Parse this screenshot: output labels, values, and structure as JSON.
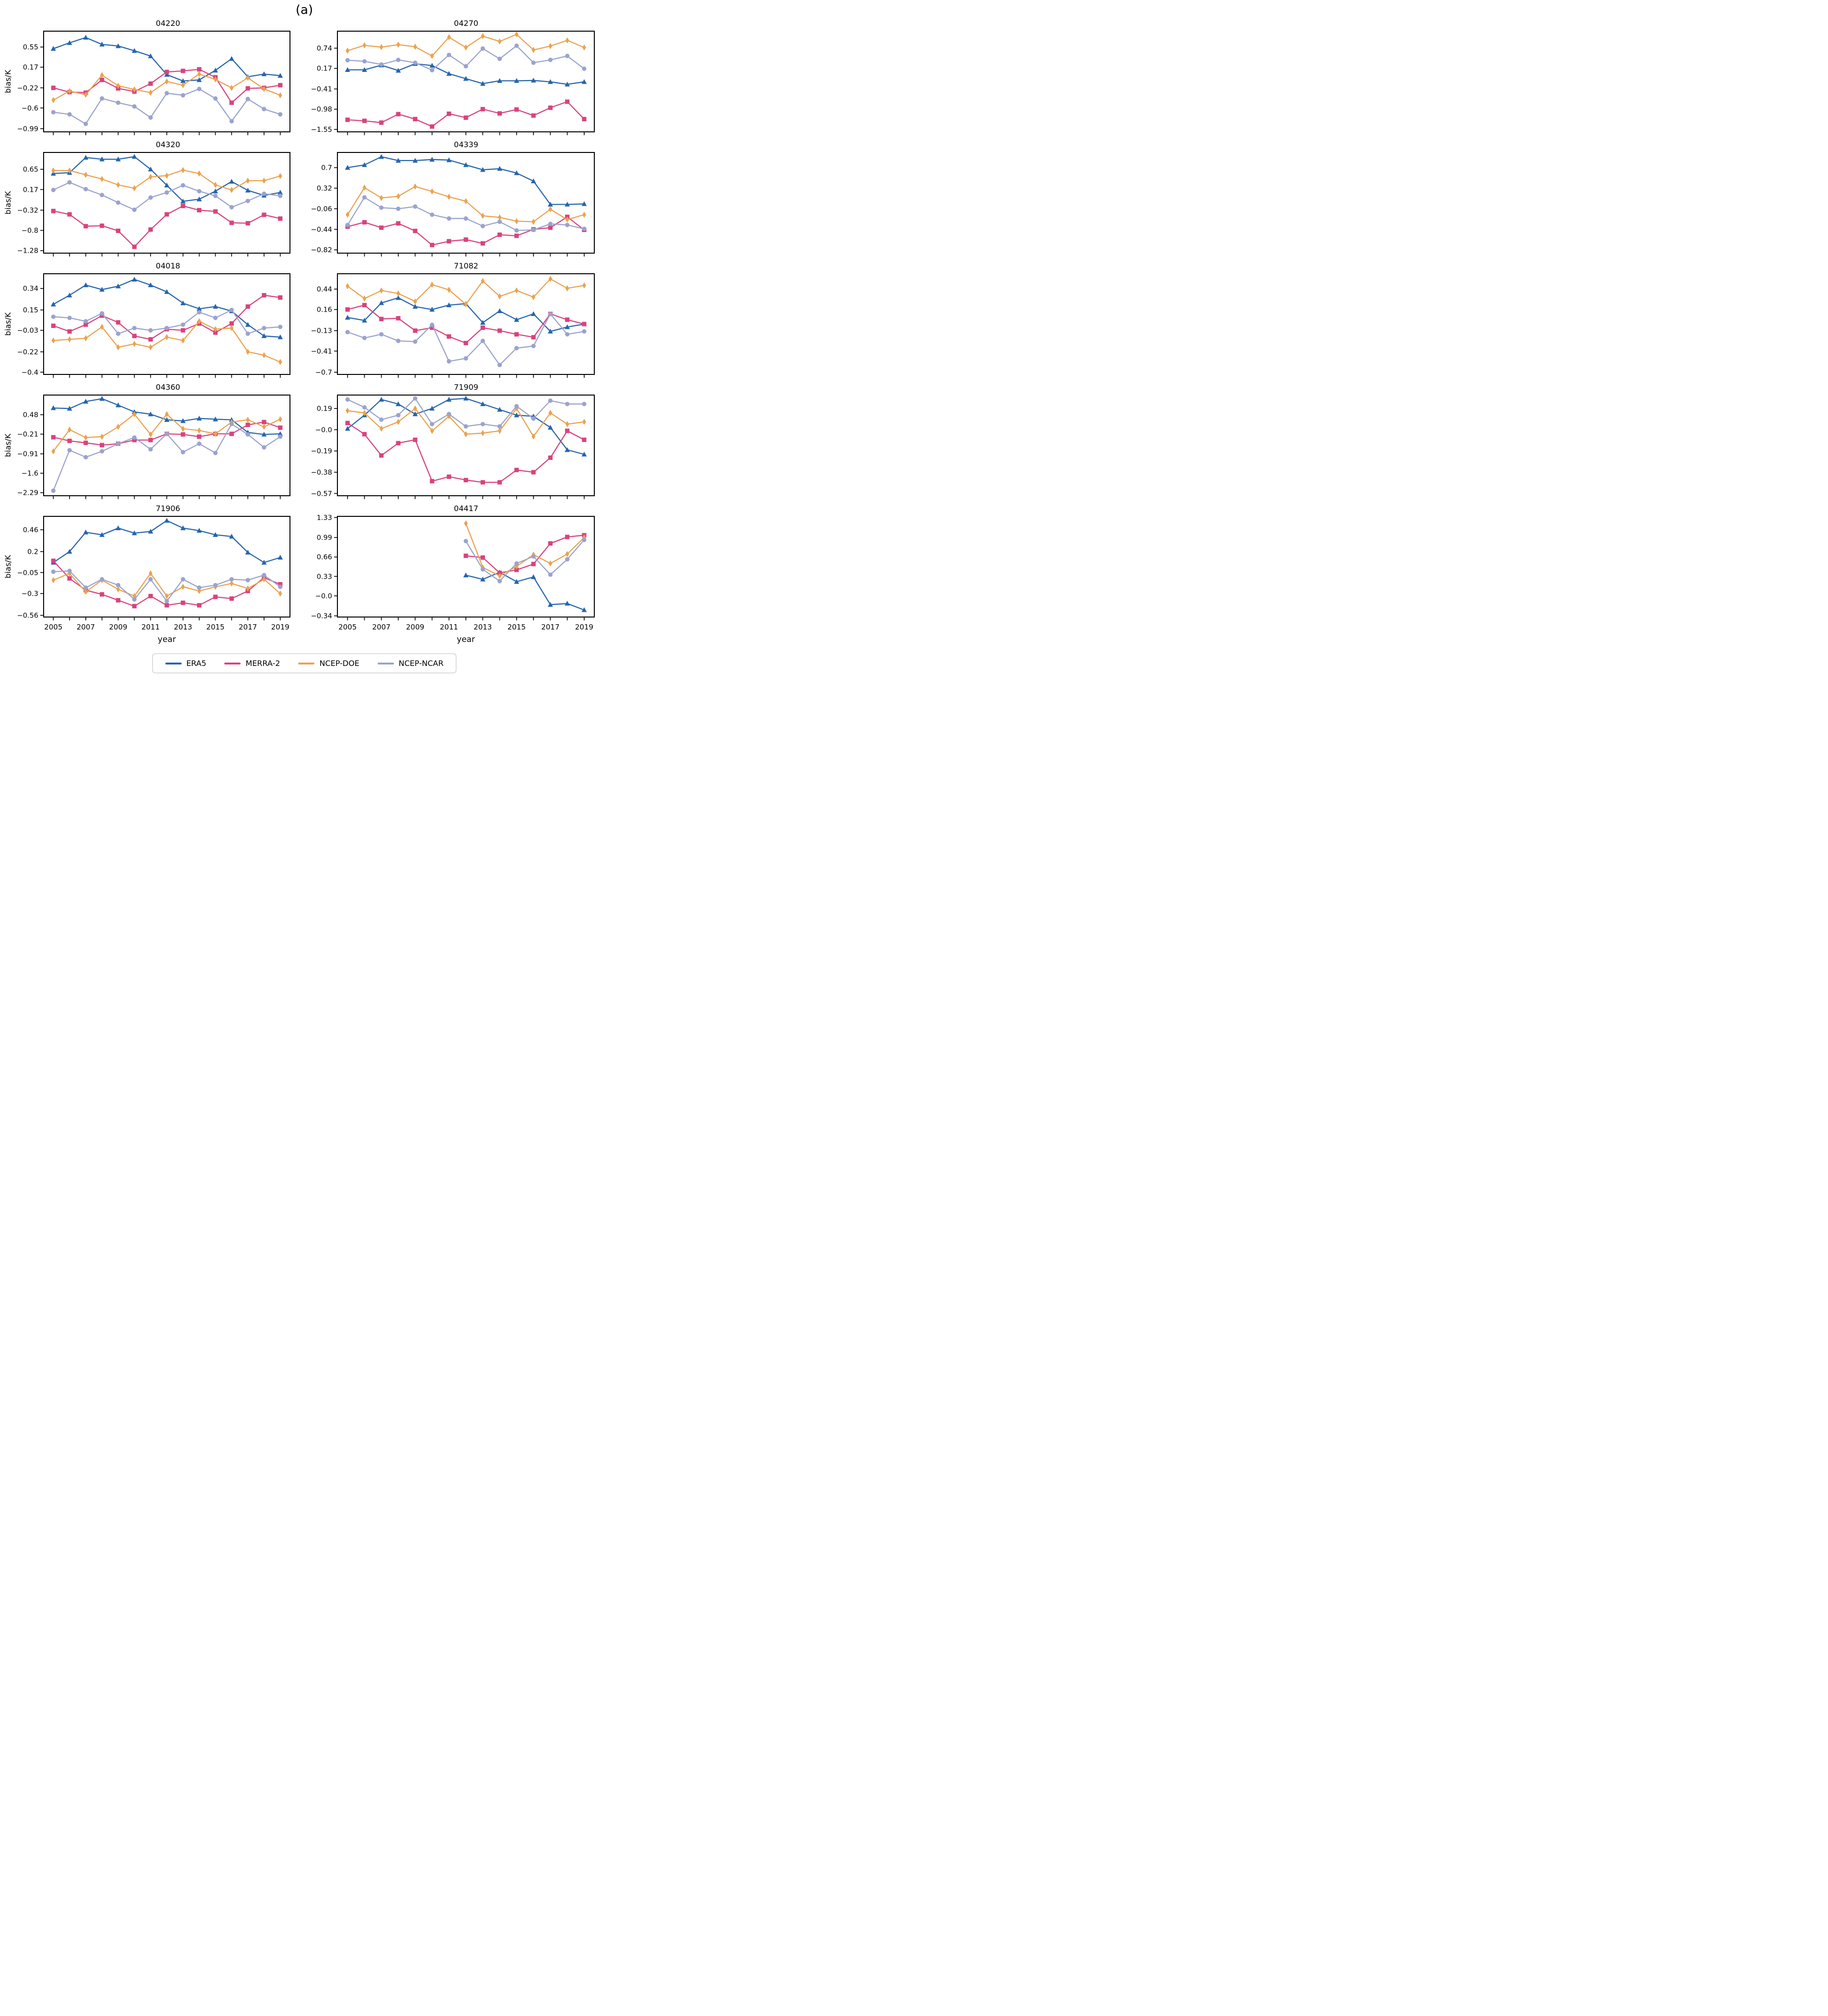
{
  "figure": {
    "panel_label": "(a)"
  },
  "axes": {
    "xlabel": "year",
    "ylabel": "bias/K",
    "x_tick_labels": [
      2005,
      2007,
      2009,
      2011,
      2013,
      2015,
      2017,
      2019
    ],
    "x_years": [
      2005,
      2006,
      2007,
      2008,
      2009,
      2010,
      2011,
      2012,
      2013,
      2014,
      2015,
      2016,
      2017,
      2018,
      2019
    ]
  },
  "legend": {
    "items": [
      {
        "label": "ERA5",
        "color": "#2565ae",
        "marker": "triangle-icon"
      },
      {
        "label": "MERRA-2",
        "color": "#d8437d",
        "marker": "square-icon"
      },
      {
        "label": "NCEP-DOE",
        "color": "#eba24f",
        "marker": "diamond-icon"
      },
      {
        "label": "NCEP-NCAR",
        "color": "#9ba3ce",
        "marker": "circle-icon"
      }
    ]
  },
  "chart_data": [
    {
      "type": "line",
      "title": "04220",
      "ytick_labels": [
        "0.55",
        "0.17",
        "-0.22",
        "-0.6",
        "-0.99"
      ],
      "ylim": [
        -1.05,
        0.85
      ],
      "x": [
        2005,
        2006,
        2007,
        2008,
        2009,
        2010,
        2011,
        2012,
        2013,
        2014,
        2015,
        2016,
        2017,
        2018,
        2019
      ],
      "series": [
        {
          "name": "ERA5",
          "y": [
            0.52,
            0.63,
            0.73,
            0.6,
            0.57,
            0.48,
            0.38,
            0.03,
            -0.09,
            -0.07,
            0.11,
            0.33,
            -0.01,
            0.04,
            0.01
          ]
        },
        {
          "name": "MERRA-2",
          "y": [
            -0.22,
            -0.3,
            -0.31,
            -0.07,
            -0.23,
            -0.29,
            -0.14,
            0.08,
            0.1,
            0.13,
            -0.02,
            -0.5,
            -0.23,
            -0.22,
            -0.17
          ]
        },
        {
          "name": "NCEP-DOE",
          "y": [
            -0.45,
            -0.28,
            -0.35,
            0.02,
            -0.18,
            -0.25,
            -0.31,
            -0.1,
            -0.17,
            0.04,
            -0.06,
            -0.22,
            -0.03,
            -0.24,
            -0.36
          ]
        },
        {
          "name": "NCEP-NCAR",
          "y": [
            -0.68,
            -0.72,
            -0.9,
            -0.42,
            -0.5,
            -0.57,
            -0.78,
            -0.32,
            -0.36,
            -0.24,
            -0.42,
            -0.85,
            -0.43,
            -0.62,
            -0.72
          ]
        }
      ]
    },
    {
      "type": "line",
      "title": "04270",
      "ytick_labels": [
        "0.74",
        "0.17",
        "-0.41",
        "-0.98",
        "-1.55"
      ],
      "ylim": [
        -1.62,
        1.22
      ],
      "x": [
        2005,
        2006,
        2007,
        2008,
        2009,
        2010,
        2011,
        2012,
        2013,
        2014,
        2015,
        2016,
        2017,
        2018,
        2019
      ],
      "series": [
        {
          "name": "ERA5",
          "y": [
            0.13,
            0.13,
            0.26,
            0.11,
            0.3,
            0.25,
            0.02,
            -0.12,
            -0.26,
            -0.18,
            -0.18,
            -0.17,
            -0.21,
            -0.28,
            -0.21
          ]
        },
        {
          "name": "MERRA-2",
          "y": [
            -1.28,
            -1.31,
            -1.36,
            -1.12,
            -1.26,
            -1.47,
            -1.11,
            -1.22,
            -0.98,
            -1.1,
            -0.99,
            -1.16,
            -0.94,
            -0.77,
            -1.26
          ]
        },
        {
          "name": "NCEP-DOE",
          "y": [
            0.67,
            0.82,
            0.77,
            0.84,
            0.78,
            0.52,
            1.05,
            0.76,
            1.08,
            0.93,
            1.13,
            0.69,
            0.8,
            0.96,
            0.76
          ]
        },
        {
          "name": "NCEP-NCAR",
          "y": [
            0.4,
            0.37,
            0.28,
            0.41,
            0.33,
            0.12,
            0.55,
            0.23,
            0.73,
            0.44,
            0.81,
            0.33,
            0.41,
            0.52,
            0.16
          ]
        }
      ]
    },
    {
      "type": "line",
      "title": "04320",
      "ytick_labels": [
        "0.65",
        "0.17",
        "-0.32",
        "-0.8",
        "-1.28"
      ],
      "ylim": [
        -1.34,
        1.05
      ],
      "x": [
        2005,
        2006,
        2007,
        2008,
        2009,
        2010,
        2011,
        2012,
        2013,
        2014,
        2015,
        2016,
        2017,
        2018,
        2019
      ],
      "series": [
        {
          "name": "ERA5",
          "y": [
            0.55,
            0.57,
            0.93,
            0.89,
            0.89,
            0.95,
            0.65,
            0.27,
            -0.11,
            -0.06,
            0.13,
            0.36,
            0.15,
            0.03,
            0.1
          ]
        },
        {
          "name": "MERRA-2",
          "y": [
            -0.34,
            -0.42,
            -0.7,
            -0.69,
            -0.81,
            -1.19,
            -0.78,
            -0.42,
            -0.22,
            -0.32,
            -0.35,
            -0.62,
            -0.63,
            -0.43,
            -0.52
          ]
        },
        {
          "name": "NCEP-DOE",
          "y": [
            0.62,
            0.62,
            0.52,
            0.42,
            0.28,
            0.2,
            0.47,
            0.5,
            0.63,
            0.55,
            0.28,
            0.16,
            0.38,
            0.38,
            0.49
          ]
        },
        {
          "name": "NCEP-NCAR",
          "y": [
            0.16,
            0.34,
            0.18,
            0.04,
            -0.14,
            -0.31,
            -0.02,
            0.1,
            0.27,
            0.13,
            0.02,
            -0.25,
            -0.1,
            0.07,
            0.02
          ]
        }
      ]
    },
    {
      "type": "line",
      "title": "04339",
      "ytick_labels": [
        "0.7",
        "0.32",
        "-0.06",
        "-0.44",
        "-0.82"
      ],
      "ylim": [
        -0.88,
        0.98
      ],
      "x": [
        2005,
        2006,
        2007,
        2008,
        2009,
        2010,
        2011,
        2012,
        2013,
        2014,
        2015,
        2016,
        2017,
        2018,
        2019
      ],
      "series": [
        {
          "name": "ERA5",
          "y": [
            0.7,
            0.75,
            0.9,
            0.83,
            0.83,
            0.85,
            0.84,
            0.75,
            0.66,
            0.68,
            0.6,
            0.45,
            0.02,
            0.02,
            0.03
          ]
        },
        {
          "name": "MERRA-2",
          "y": [
            -0.39,
            -0.31,
            -0.41,
            -0.33,
            -0.47,
            -0.73,
            -0.66,
            -0.63,
            -0.7,
            -0.54,
            -0.56,
            -0.44,
            -0.41,
            -0.21,
            -0.45
          ]
        },
        {
          "name": "NCEP-DOE",
          "y": [
            -0.17,
            0.33,
            0.14,
            0.17,
            0.35,
            0.26,
            0.16,
            0.08,
            -0.19,
            -0.22,
            -0.29,
            -0.3,
            -0.07,
            -0.26,
            -0.17
          ]
        },
        {
          "name": "NCEP-NCAR",
          "y": [
            -0.36,
            0.15,
            -0.04,
            -0.06,
            -0.02,
            -0.17,
            -0.24,
            -0.24,
            -0.38,
            -0.3,
            -0.46,
            -0.45,
            -0.34,
            -0.36,
            -0.43
          ]
        }
      ]
    },
    {
      "type": "line",
      "title": "04018",
      "ytick_labels": [
        "0.34",
        "0.15",
        "-0.03",
        "-0.22",
        "-0.4"
      ],
      "ylim": [
        -0.42,
        0.47
      ],
      "x": [
        2005,
        2006,
        2007,
        2008,
        2009,
        2010,
        2011,
        2012,
        2013,
        2014,
        2015,
        2016,
        2017,
        2018,
        2019
      ],
      "series": [
        {
          "name": "ERA5",
          "y": [
            0.2,
            0.28,
            0.37,
            0.33,
            0.36,
            0.42,
            0.37,
            0.31,
            0.21,
            0.16,
            0.18,
            0.14,
            0.02,
            -0.08,
            -0.09
          ]
        },
        {
          "name": "MERRA-2",
          "y": [
            0.01,
            -0.04,
            0.02,
            0.1,
            0.04,
            -0.08,
            -0.11,
            -0.02,
            -0.03,
            0.03,
            -0.05,
            0.03,
            0.18,
            0.28,
            0.26
          ]
        },
        {
          "name": "NCEP-DOE",
          "y": [
            -0.12,
            -0.11,
            -0.1,
            0.0,
            -0.18,
            -0.15,
            -0.18,
            -0.09,
            -0.12,
            0.05,
            -0.02,
            -0.01,
            -0.22,
            -0.25,
            -0.31
          ]
        },
        {
          "name": "NCEP-NCAR",
          "y": [
            0.09,
            0.08,
            0.05,
            0.12,
            -0.06,
            -0.01,
            -0.03,
            -0.01,
            0.02,
            0.13,
            0.08,
            0.15,
            -0.06,
            -0.01,
            0.0
          ]
        }
      ]
    },
    {
      "type": "line",
      "title": "71082",
      "ytick_labels": [
        "0.44",
        "0.16",
        "-0.13",
        "-0.41",
        "-0.7"
      ],
      "ylim": [
        -0.73,
        0.65
      ],
      "x": [
        2005,
        2006,
        2007,
        2008,
        2009,
        2010,
        2011,
        2012,
        2013,
        2014,
        2015,
        2016,
        2017,
        2018,
        2019
      ],
      "series": [
        {
          "name": "ERA5",
          "y": [
            0.05,
            0.01,
            0.25,
            0.32,
            0.2,
            0.16,
            0.22,
            0.24,
            -0.02,
            0.14,
            0.02,
            0.1,
            -0.14,
            -0.08,
            -0.04
          ]
        },
        {
          "name": "MERRA-2",
          "y": [
            0.16,
            0.22,
            0.03,
            0.04,
            -0.13,
            -0.09,
            -0.21,
            -0.3,
            -0.09,
            -0.13,
            -0.18,
            -0.22,
            0.1,
            0.02,
            -0.04
          ]
        },
        {
          "name": "NCEP-DOE",
          "y": [
            0.48,
            0.31,
            0.42,
            0.38,
            0.27,
            0.5,
            0.43,
            0.23,
            0.55,
            0.34,
            0.42,
            0.33,
            0.58,
            0.45,
            0.49
          ]
        },
        {
          "name": "NCEP-NCAR",
          "y": [
            -0.15,
            -0.23,
            -0.18,
            -0.27,
            -0.28,
            -0.05,
            -0.55,
            -0.51,
            -0.27,
            -0.6,
            -0.37,
            -0.34,
            0.1,
            -0.18,
            -0.14
          ]
        }
      ]
    },
    {
      "type": "line",
      "title": "04360",
      "ytick_labels": [
        "0.48",
        "-0.21",
        "-0.91",
        "-1.6",
        "-2.29"
      ],
      "ylim": [
        -2.4,
        1.18
      ],
      "x": [
        2005,
        2006,
        2007,
        2008,
        2009,
        2010,
        2011,
        2012,
        2013,
        2014,
        2015,
        2016,
        2017,
        2018,
        2019
      ],
      "series": [
        {
          "name": "ERA5",
          "y": [
            0.72,
            0.7,
            0.95,
            1.05,
            0.82,
            0.58,
            0.5,
            0.3,
            0.26,
            0.35,
            0.32,
            0.3,
            -0.15,
            -0.22,
            -0.2
          ]
        },
        {
          "name": "MERRA-2",
          "y": [
            -0.32,
            -0.45,
            -0.52,
            -0.6,
            -0.55,
            -0.42,
            -0.42,
            -0.2,
            -0.22,
            -0.3,
            -0.2,
            -0.2,
            0.12,
            0.22,
            0.02
          ]
        },
        {
          "name": "NCEP-DOE",
          "y": [
            -0.82,
            -0.05,
            -0.33,
            -0.3,
            0.05,
            0.5,
            -0.22,
            0.5,
            -0.02,
            -0.08,
            -0.2,
            0.22,
            0.3,
            0.05,
            0.32
          ]
        },
        {
          "name": "NCEP-NCAR",
          "y": [
            -2.22,
            -0.78,
            -1.03,
            -0.82,
            -0.55,
            -0.33,
            -0.75,
            -0.2,
            -0.85,
            -0.55,
            -0.88,
            0.15,
            -0.22,
            -0.68,
            -0.3
          ]
        }
      ]
    },
    {
      "type": "line",
      "title": "71909",
      "ytick_labels": [
        "0.19",
        "-0.0",
        "-0.19",
        "-0.38",
        "-0.57"
      ],
      "ylim": [
        -0.59,
        0.31
      ],
      "x": [
        2005,
        2006,
        2007,
        2008,
        2009,
        2010,
        2011,
        2012,
        2013,
        2014,
        2015,
        2016,
        2017,
        2018,
        2019
      ],
      "series": [
        {
          "name": "ERA5",
          "y": [
            0.01,
            0.13,
            0.27,
            0.23,
            0.14,
            0.19,
            0.27,
            0.28,
            0.23,
            0.18,
            0.13,
            0.12,
            0.02,
            -0.18,
            -0.22
          ]
        },
        {
          "name": "MERRA-2",
          "y": [
            0.06,
            -0.04,
            -0.23,
            -0.12,
            -0.09,
            -0.46,
            -0.42,
            -0.45,
            -0.47,
            -0.47,
            -0.36,
            -0.38,
            -0.25,
            -0.01,
            -0.09
          ]
        },
        {
          "name": "NCEP-DOE",
          "y": [
            0.17,
            0.15,
            0.01,
            0.07,
            0.19,
            -0.01,
            0.12,
            -0.04,
            -0.03,
            -0.01,
            0.19,
            -0.06,
            0.15,
            0.05,
            0.07
          ]
        },
        {
          "name": "NCEP-NCAR",
          "y": [
            0.27,
            0.2,
            0.09,
            0.13,
            0.28,
            0.05,
            0.14,
            0.03,
            0.05,
            0.03,
            0.21,
            0.1,
            0.26,
            0.23,
            0.23
          ]
        }
      ]
    },
    {
      "type": "line",
      "title": "71906",
      "ytick_labels": [
        "0.46",
        "0.2",
        "-0.05",
        "-0.3",
        "-0.56"
      ],
      "ylim": [
        -0.58,
        0.62
      ],
      "x": [
        2005,
        2006,
        2007,
        2008,
        2009,
        2010,
        2011,
        2012,
        2013,
        2014,
        2015,
        2016,
        2017,
        2018,
        2019
      ],
      "series": [
        {
          "name": "ERA5",
          "y": [
            0.07,
            0.2,
            0.43,
            0.4,
            0.48,
            0.42,
            0.44,
            0.57,
            0.48,
            0.45,
            0.4,
            0.38,
            0.19,
            0.07,
            0.13
          ]
        },
        {
          "name": "MERRA-2",
          "y": [
            0.09,
            -0.12,
            -0.26,
            -0.31,
            -0.38,
            -0.45,
            -0.33,
            -0.44,
            -0.41,
            -0.44,
            -0.34,
            -0.36,
            -0.27,
            -0.11,
            -0.19
          ]
        },
        {
          "name": "NCEP-DOE",
          "y": [
            -0.14,
            -0.06,
            -0.28,
            -0.14,
            -0.25,
            -0.33,
            -0.06,
            -0.33,
            -0.22,
            -0.27,
            -0.22,
            -0.18,
            -0.24,
            -0.13,
            -0.3
          ]
        },
        {
          "name": "NCEP-NCAR",
          "y": [
            -0.04,
            -0.03,
            -0.23,
            -0.13,
            -0.2,
            -0.37,
            -0.13,
            -0.39,
            -0.13,
            -0.23,
            -0.2,
            -0.13,
            -0.14,
            -0.08,
            -0.22
          ]
        }
      ]
    },
    {
      "type": "line",
      "title": "04417",
      "ytick_labels": [
        "1.33",
        "0.99",
        "0.66",
        "0.33",
        "-0.0",
        "-0.34"
      ],
      "ylim": [
        -0.36,
        1.35
      ],
      "x": [
        2012,
        2013,
        2014,
        2015,
        2016,
        2017,
        2018,
        2019
      ],
      "series": [
        {
          "name": "ERA5",
          "y": [
            0.35,
            0.28,
            0.4,
            0.24,
            0.32,
            -0.15,
            -0.13,
            -0.24
          ]
        },
        {
          "name": "MERRA-2",
          "y": [
            0.68,
            0.65,
            0.39,
            0.44,
            0.54,
            0.89,
            1.0,
            1.03
          ]
        },
        {
          "name": "NCEP-DOE",
          "y": [
            1.23,
            0.48,
            0.34,
            0.5,
            0.7,
            0.55,
            0.71,
            0.99
          ]
        },
        {
          "name": "NCEP-NCAR",
          "y": [
            0.93,
            0.45,
            0.25,
            0.55,
            0.67,
            0.36,
            0.62,
            0.95
          ]
        }
      ]
    }
  ]
}
